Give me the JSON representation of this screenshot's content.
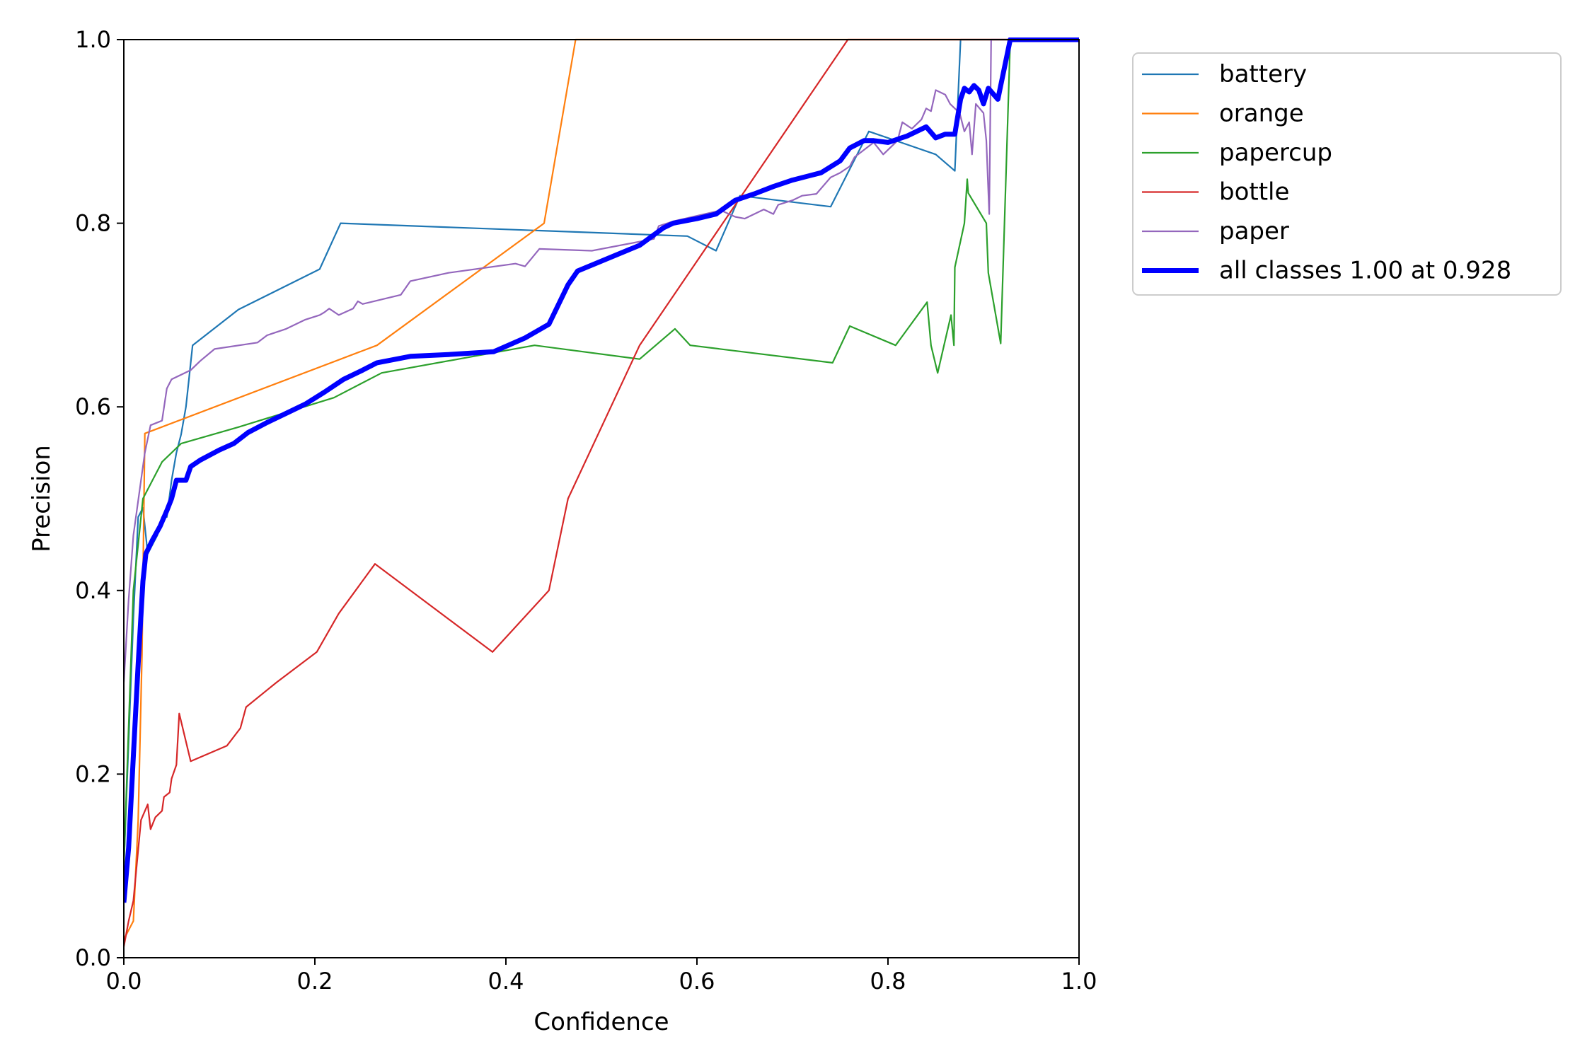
{
  "chart_data": {
    "type": "line",
    "xlabel": "Confidence",
    "ylabel": "Precision",
    "xlim": [
      0.0,
      1.0
    ],
    "ylim": [
      0.0,
      1.0
    ],
    "x_ticks": [
      "0.0",
      "0.2",
      "0.4",
      "0.6",
      "0.8",
      "1.0"
    ],
    "y_ticks": [
      "0.0",
      "0.2",
      "0.4",
      "0.6",
      "0.8",
      "1.0"
    ],
    "grid": false,
    "legend_position": "outside-right-top",
    "series": [
      {
        "name": "battery",
        "color": "#1f77b4",
        "width": "thin",
        "points": [
          [
            0.0,
            0.1
          ],
          [
            0.01,
            0.37
          ],
          [
            0.015,
            0.48
          ],
          [
            0.02,
            0.49
          ],
          [
            0.025,
            0.44
          ],
          [
            0.03,
            0.45
          ],
          [
            0.035,
            0.46
          ],
          [
            0.04,
            0.48
          ],
          [
            0.045,
            0.48
          ],
          [
            0.05,
            0.52
          ],
          [
            0.055,
            0.55
          ],
          [
            0.06,
            0.57
          ],
          [
            0.065,
            0.6
          ],
          [
            0.072,
            0.667
          ],
          [
            0.12,
            0.706
          ],
          [
            0.205,
            0.75
          ],
          [
            0.227,
            0.8
          ],
          [
            0.59,
            0.786
          ],
          [
            0.62,
            0.77
          ],
          [
            0.645,
            0.83
          ],
          [
            0.74,
            0.818
          ],
          [
            0.78,
            0.9
          ],
          [
            0.85,
            0.875
          ],
          [
            0.87,
            0.857
          ],
          [
            0.876,
            1.0
          ],
          [
            1.0,
            1.0
          ]
        ]
      },
      {
        "name": "orange",
        "color": "#ff7f0e",
        "width": "thin",
        "points": [
          [
            0.0,
            0.02
          ],
          [
            0.01,
            0.04
          ],
          [
            0.015,
            0.15
          ],
          [
            0.019,
            0.33
          ],
          [
            0.022,
            0.571
          ],
          [
            0.265,
            0.667
          ],
          [
            0.44,
            0.8
          ],
          [
            0.473,
            1.0
          ],
          [
            1.0,
            1.0
          ]
        ]
      },
      {
        "name": "papercup",
        "color": "#2ca02c",
        "width": "thin",
        "points": [
          [
            0.0,
            0.1
          ],
          [
            0.01,
            0.4
          ],
          [
            0.02,
            0.5
          ],
          [
            0.03,
            0.52
          ],
          [
            0.04,
            0.54
          ],
          [
            0.06,
            0.56
          ],
          [
            0.12,
            0.578
          ],
          [
            0.22,
            0.61
          ],
          [
            0.27,
            0.637
          ],
          [
            0.43,
            0.667
          ],
          [
            0.54,
            0.652
          ],
          [
            0.577,
            0.685
          ],
          [
            0.593,
            0.667
          ],
          [
            0.742,
            0.648
          ],
          [
            0.76,
            0.688
          ],
          [
            0.808,
            0.667
          ],
          [
            0.841,
            0.714
          ],
          [
            0.845,
            0.667
          ],
          [
            0.852,
            0.637
          ],
          [
            0.866,
            0.7
          ],
          [
            0.869,
            0.667
          ],
          [
            0.87,
            0.752
          ],
          [
            0.88,
            0.8
          ],
          [
            0.883,
            0.848
          ],
          [
            0.884,
            0.833
          ],
          [
            0.903,
            0.8
          ],
          [
            0.905,
            0.746
          ],
          [
            0.918,
            0.669
          ],
          [
            0.928,
            1.0
          ],
          [
            1.0,
            1.0
          ]
        ]
      },
      {
        "name": "bottle",
        "color": "#d62728",
        "width": "thin",
        "points": [
          [
            0.0,
            0.012
          ],
          [
            0.005,
            0.04
          ],
          [
            0.01,
            0.062
          ],
          [
            0.018,
            0.15
          ],
          [
            0.025,
            0.167
          ],
          [
            0.028,
            0.14
          ],
          [
            0.033,
            0.153
          ],
          [
            0.04,
            0.16
          ],
          [
            0.042,
            0.175
          ],
          [
            0.048,
            0.18
          ],
          [
            0.05,
            0.195
          ],
          [
            0.055,
            0.21
          ],
          [
            0.058,
            0.266
          ],
          [
            0.07,
            0.214
          ],
          [
            0.108,
            0.231
          ],
          [
            0.122,
            0.25
          ],
          [
            0.128,
            0.273
          ],
          [
            0.16,
            0.3
          ],
          [
            0.202,
            0.333
          ],
          [
            0.225,
            0.375
          ],
          [
            0.263,
            0.429
          ],
          [
            0.386,
            0.333
          ],
          [
            0.445,
            0.4
          ],
          [
            0.465,
            0.5
          ],
          [
            0.54,
            0.667
          ],
          [
            0.758,
            1.0
          ],
          [
            1.0,
            1.0
          ]
        ]
      },
      {
        "name": "paper",
        "color": "#9467bd",
        "width": "thin",
        "points": [
          [
            0.0,
            0.3
          ],
          [
            0.005,
            0.39
          ],
          [
            0.01,
            0.46
          ],
          [
            0.018,
            0.52
          ],
          [
            0.022,
            0.55
          ],
          [
            0.028,
            0.58
          ],
          [
            0.04,
            0.585
          ],
          [
            0.045,
            0.62
          ],
          [
            0.05,
            0.63
          ],
          [
            0.07,
            0.64
          ],
          [
            0.08,
            0.65
          ],
          [
            0.095,
            0.663
          ],
          [
            0.14,
            0.67
          ],
          [
            0.15,
            0.678
          ],
          [
            0.17,
            0.685
          ],
          [
            0.19,
            0.695
          ],
          [
            0.205,
            0.7
          ],
          [
            0.21,
            0.703
          ],
          [
            0.215,
            0.707
          ],
          [
            0.225,
            0.7
          ],
          [
            0.24,
            0.707
          ],
          [
            0.245,
            0.715
          ],
          [
            0.25,
            0.712
          ],
          [
            0.29,
            0.722
          ],
          [
            0.3,
            0.737
          ],
          [
            0.34,
            0.746
          ],
          [
            0.41,
            0.756
          ],
          [
            0.42,
            0.753
          ],
          [
            0.435,
            0.772
          ],
          [
            0.49,
            0.77
          ],
          [
            0.555,
            0.783
          ],
          [
            0.56,
            0.797
          ],
          [
            0.575,
            0.802
          ],
          [
            0.625,
            0.814
          ],
          [
            0.64,
            0.807
          ],
          [
            0.65,
            0.805
          ],
          [
            0.67,
            0.815
          ],
          [
            0.68,
            0.81
          ],
          [
            0.685,
            0.82
          ],
          [
            0.7,
            0.825
          ],
          [
            0.71,
            0.83
          ],
          [
            0.725,
            0.832
          ],
          [
            0.74,
            0.85
          ],
          [
            0.75,
            0.855
          ],
          [
            0.76,
            0.862
          ],
          [
            0.765,
            0.872
          ],
          [
            0.775,
            0.88
          ],
          [
            0.785,
            0.888
          ],
          [
            0.795,
            0.875
          ],
          [
            0.81,
            0.89
          ],
          [
            0.815,
            0.91
          ],
          [
            0.825,
            0.903
          ],
          [
            0.835,
            0.913
          ],
          [
            0.84,
            0.925
          ],
          [
            0.845,
            0.922
          ],
          [
            0.85,
            0.945
          ],
          [
            0.86,
            0.94
          ],
          [
            0.865,
            0.93
          ],
          [
            0.875,
            0.92
          ],
          [
            0.88,
            0.9
          ],
          [
            0.885,
            0.91
          ],
          [
            0.888,
            0.875
          ],
          [
            0.892,
            0.93
          ],
          [
            0.9,
            0.92
          ],
          [
            0.903,
            0.89
          ],
          [
            0.906,
            0.81
          ],
          [
            0.908,
            1.0
          ],
          [
            1.0,
            1.0
          ]
        ]
      },
      {
        "name": "all classes 1.00 at 0.928",
        "color": "#0000ff",
        "width": "thick",
        "points": [
          [
            0.0,
            0.06
          ],
          [
            0.005,
            0.12
          ],
          [
            0.01,
            0.22
          ],
          [
            0.015,
            0.32
          ],
          [
            0.02,
            0.41
          ],
          [
            0.023,
            0.44
          ],
          [
            0.03,
            0.455
          ],
          [
            0.038,
            0.47
          ],
          [
            0.045,
            0.487
          ],
          [
            0.05,
            0.5
          ],
          [
            0.055,
            0.52
          ],
          [
            0.065,
            0.52
          ],
          [
            0.07,
            0.535
          ],
          [
            0.08,
            0.542
          ],
          [
            0.1,
            0.553
          ],
          [
            0.115,
            0.56
          ],
          [
            0.13,
            0.572
          ],
          [
            0.15,
            0.583
          ],
          [
            0.17,
            0.593
          ],
          [
            0.19,
            0.603
          ],
          [
            0.21,
            0.616
          ],
          [
            0.23,
            0.63
          ],
          [
            0.25,
            0.64
          ],
          [
            0.265,
            0.648
          ],
          [
            0.3,
            0.655
          ],
          [
            0.34,
            0.657
          ],
          [
            0.387,
            0.66
          ],
          [
            0.42,
            0.675
          ],
          [
            0.445,
            0.69
          ],
          [
            0.465,
            0.733
          ],
          [
            0.475,
            0.748
          ],
          [
            0.54,
            0.776
          ],
          [
            0.565,
            0.795
          ],
          [
            0.575,
            0.8
          ],
          [
            0.6,
            0.805
          ],
          [
            0.62,
            0.81
          ],
          [
            0.64,
            0.825
          ],
          [
            0.66,
            0.832
          ],
          [
            0.68,
            0.84
          ],
          [
            0.7,
            0.847
          ],
          [
            0.73,
            0.855
          ],
          [
            0.75,
            0.868
          ],
          [
            0.76,
            0.882
          ],
          [
            0.775,
            0.89
          ],
          [
            0.785,
            0.89
          ],
          [
            0.8,
            0.888
          ],
          [
            0.82,
            0.895
          ],
          [
            0.84,
            0.905
          ],
          [
            0.85,
            0.893
          ],
          [
            0.86,
            0.897
          ],
          [
            0.87,
            0.897
          ],
          [
            0.872,
            0.91
          ],
          [
            0.876,
            0.935
          ],
          [
            0.88,
            0.947
          ],
          [
            0.885,
            0.943
          ],
          [
            0.89,
            0.95
          ],
          [
            0.895,
            0.945
          ],
          [
            0.9,
            0.93
          ],
          [
            0.905,
            0.947
          ],
          [
            0.915,
            0.935
          ],
          [
            0.928,
            1.0
          ],
          [
            1.0,
            1.0
          ]
        ]
      }
    ]
  }
}
